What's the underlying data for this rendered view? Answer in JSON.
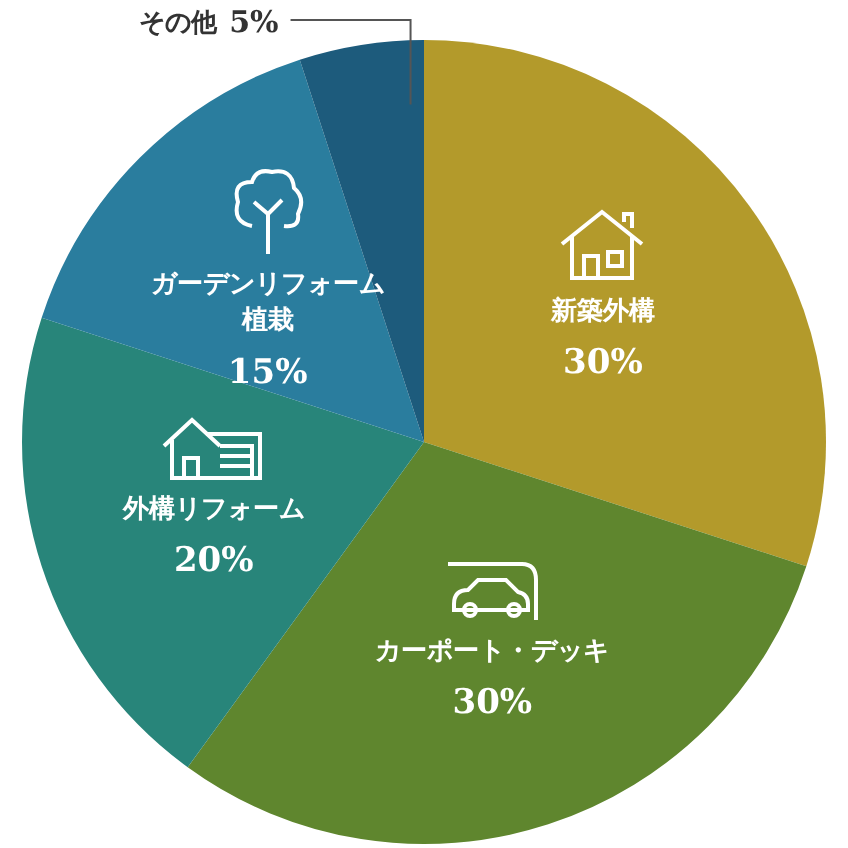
{
  "chart_data": {
    "type": "pie",
    "categories": [
      "新築外構",
      "カーポート・デッキ",
      "外構リフォーム",
      "ガーデンリフォーム植栽",
      "その他"
    ],
    "values": [
      30,
      30,
      20,
      15,
      5
    ],
    "value_labels": [
      "30%",
      "30%",
      "20%",
      "15%",
      "5%"
    ],
    "colors": [
      "#b39a2b",
      "#5f862e",
      "#28857a",
      "#2a7d9e",
      "#1d5b7c"
    ],
    "legend": false
  }
}
